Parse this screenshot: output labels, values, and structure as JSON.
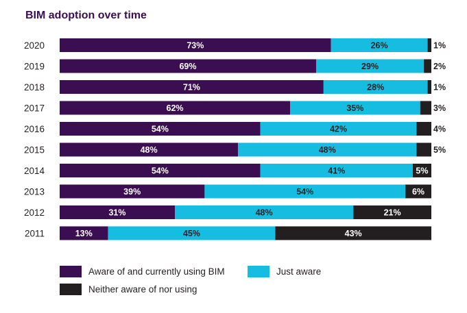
{
  "chart_data": {
    "type": "bar",
    "orientation": "horizontal",
    "stacked": true,
    "title": "BIM adoption over time",
    "xlabel": "",
    "ylabel": "",
    "xlim": [
      0,
      100
    ],
    "categories": [
      "2020",
      "2019",
      "2018",
      "2017",
      "2016",
      "2015",
      "2014",
      "2013",
      "2012",
      "2011"
    ],
    "series": [
      {
        "name": "Aware of and currently using BIM",
        "color": "#3b0e52",
        "label_color": "#ffffff",
        "values": [
          73,
          69,
          71,
          62,
          54,
          48,
          54,
          39,
          31,
          13
        ]
      },
      {
        "name": "Just aware",
        "color": "#16bde0",
        "label_color": "#231f20",
        "values": [
          26,
          29,
          28,
          35,
          42,
          48,
          41,
          54,
          48,
          45
        ]
      },
      {
        "name": "Neither aware of nor using",
        "color": "#231f20",
        "label_color": "#ffffff",
        "values": [
          1,
          2,
          1,
          3,
          4,
          5,
          5,
          6,
          21,
          43
        ]
      }
    ],
    "legend": {
      "placement": "bottom-left"
    },
    "title_color": "#3b0e52"
  }
}
